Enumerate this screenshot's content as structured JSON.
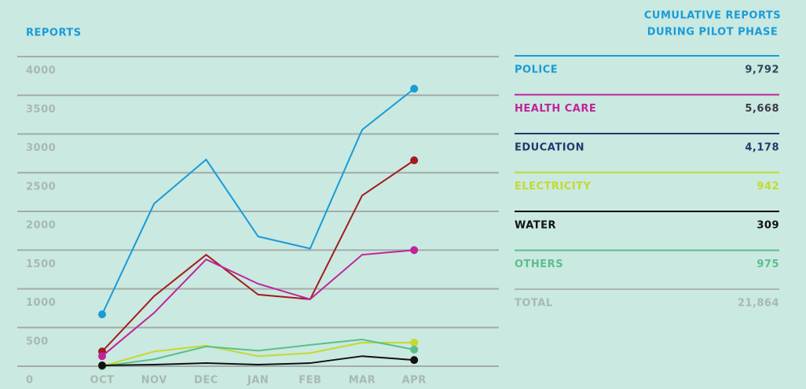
{
  "chart_data": {
    "type": "line",
    "title": "REPORTS",
    "categories": [
      "OCT",
      "NOV",
      "DEC",
      "JAN",
      "FEB",
      "MAR",
      "APR"
    ],
    "series": [
      {
        "color": "#1a9bd7",
        "values": [
          670,
          2100,
          2670,
          1675,
          1520,
          3055,
          3585
        ]
      },
      {
        "color": "#a31c1c",
        "values": [
          190,
          905,
          1440,
          925,
          865,
          2205,
          2660
        ]
      },
      {
        "color": "#c0249a",
        "values": [
          130,
          690,
          1380,
          1065,
          865,
          1440,
          1500
        ]
      },
      {
        "color": "#c5d92e",
        "values": [
          0,
          190,
          265,
          130,
          170,
          305,
          305
        ]
      },
      {
        "color": "#5bbf8a",
        "values": [
          0,
          90,
          255,
          200,
          275,
          345,
          215
        ]
      },
      {
        "color": "#111111",
        "values": [
          10,
          20,
          40,
          20,
          40,
          130,
          80
        ]
      }
    ],
    "ylim": [
      0,
      4000
    ],
    "yticks": [
      0,
      500,
      1000,
      1500,
      2000,
      2500,
      3000,
      3500,
      4000
    ],
    "grid": true
  },
  "table": {
    "title": [
      "CUMULATIVE REPORTS",
      "DURING PILOT PHASE"
    ],
    "rows": [
      {
        "label": "POLICE",
        "value": "9,792",
        "color": "#1a9bd7",
        "value_color": "#2d4a5a"
      },
      {
        "label": "HEALTH CARE",
        "value": "5,668",
        "color": "#c0249a",
        "value_color": "#3d3d4a"
      },
      {
        "label": "EDUCATION",
        "value": "4,178",
        "color": "#1f3a6e",
        "value_color": "#1f3a6e"
      },
      {
        "label": "ELECTRICITY",
        "value": "942",
        "color": "#c5d92e",
        "value_color": "#c5d92e"
      },
      {
        "label": "WATER",
        "value": "309",
        "color": "#111111",
        "value_color": "#111111"
      },
      {
        "label": "OTHERS",
        "value": "975",
        "color": "#5bbf8a",
        "value_color": "#5bbf8a"
      },
      {
        "label": "TOTAL",
        "value": "21,864",
        "color": "#a9b8b4",
        "value_color": "#a9b8b4"
      }
    ]
  }
}
